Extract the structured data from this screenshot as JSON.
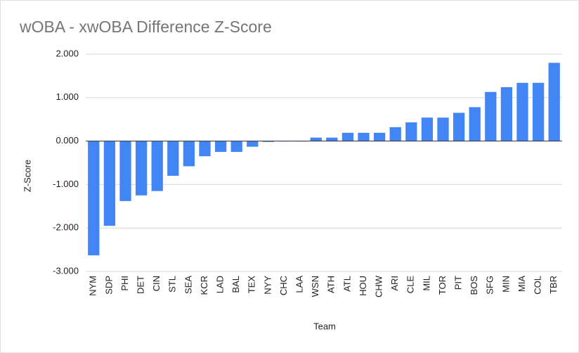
{
  "chart_data": {
    "type": "bar",
    "title": "wOBA - xwOBA Difference Z-Score",
    "x_label": "Team",
    "y_label": "Z-Score",
    "categories": [
      "NYM",
      "SDP",
      "PHI",
      "DET",
      "CIN",
      "STL",
      "SEA",
      "KCR",
      "LAD",
      "BAL",
      "TEX",
      "NYY",
      "CHC",
      "LAA",
      "WSN",
      "ATH",
      "ATL",
      "HOU",
      "CHW",
      "ARI",
      "CLE",
      "MIL",
      "TOR",
      "PIT",
      "BOS",
      "SFG",
      "MIN",
      "MIA",
      "COL",
      "TBR"
    ],
    "values": [
      -2.63,
      -1.95,
      -1.38,
      -1.25,
      -1.15,
      -0.8,
      -0.58,
      -0.35,
      -0.25,
      -0.25,
      -0.13,
      -0.02,
      -0.01,
      -0.01,
      0.08,
      0.08,
      0.19,
      0.19,
      0.19,
      0.32,
      0.43,
      0.54,
      0.54,
      0.65,
      0.78,
      1.13,
      1.24,
      1.34,
      1.34,
      1.8
    ],
    "color": "#4285f4",
    "ylim": [
      -3,
      2
    ],
    "yticks": [
      {
        "value": -3,
        "label": "-3.000"
      },
      {
        "value": -2,
        "label": "-2.000"
      },
      {
        "value": -1,
        "label": "-1.000"
      },
      {
        "value": 0,
        "label": "0.000"
      },
      {
        "value": 1,
        "label": "1.000"
      },
      {
        "value": 2,
        "label": "2.000"
      }
    ],
    "grid": true
  }
}
